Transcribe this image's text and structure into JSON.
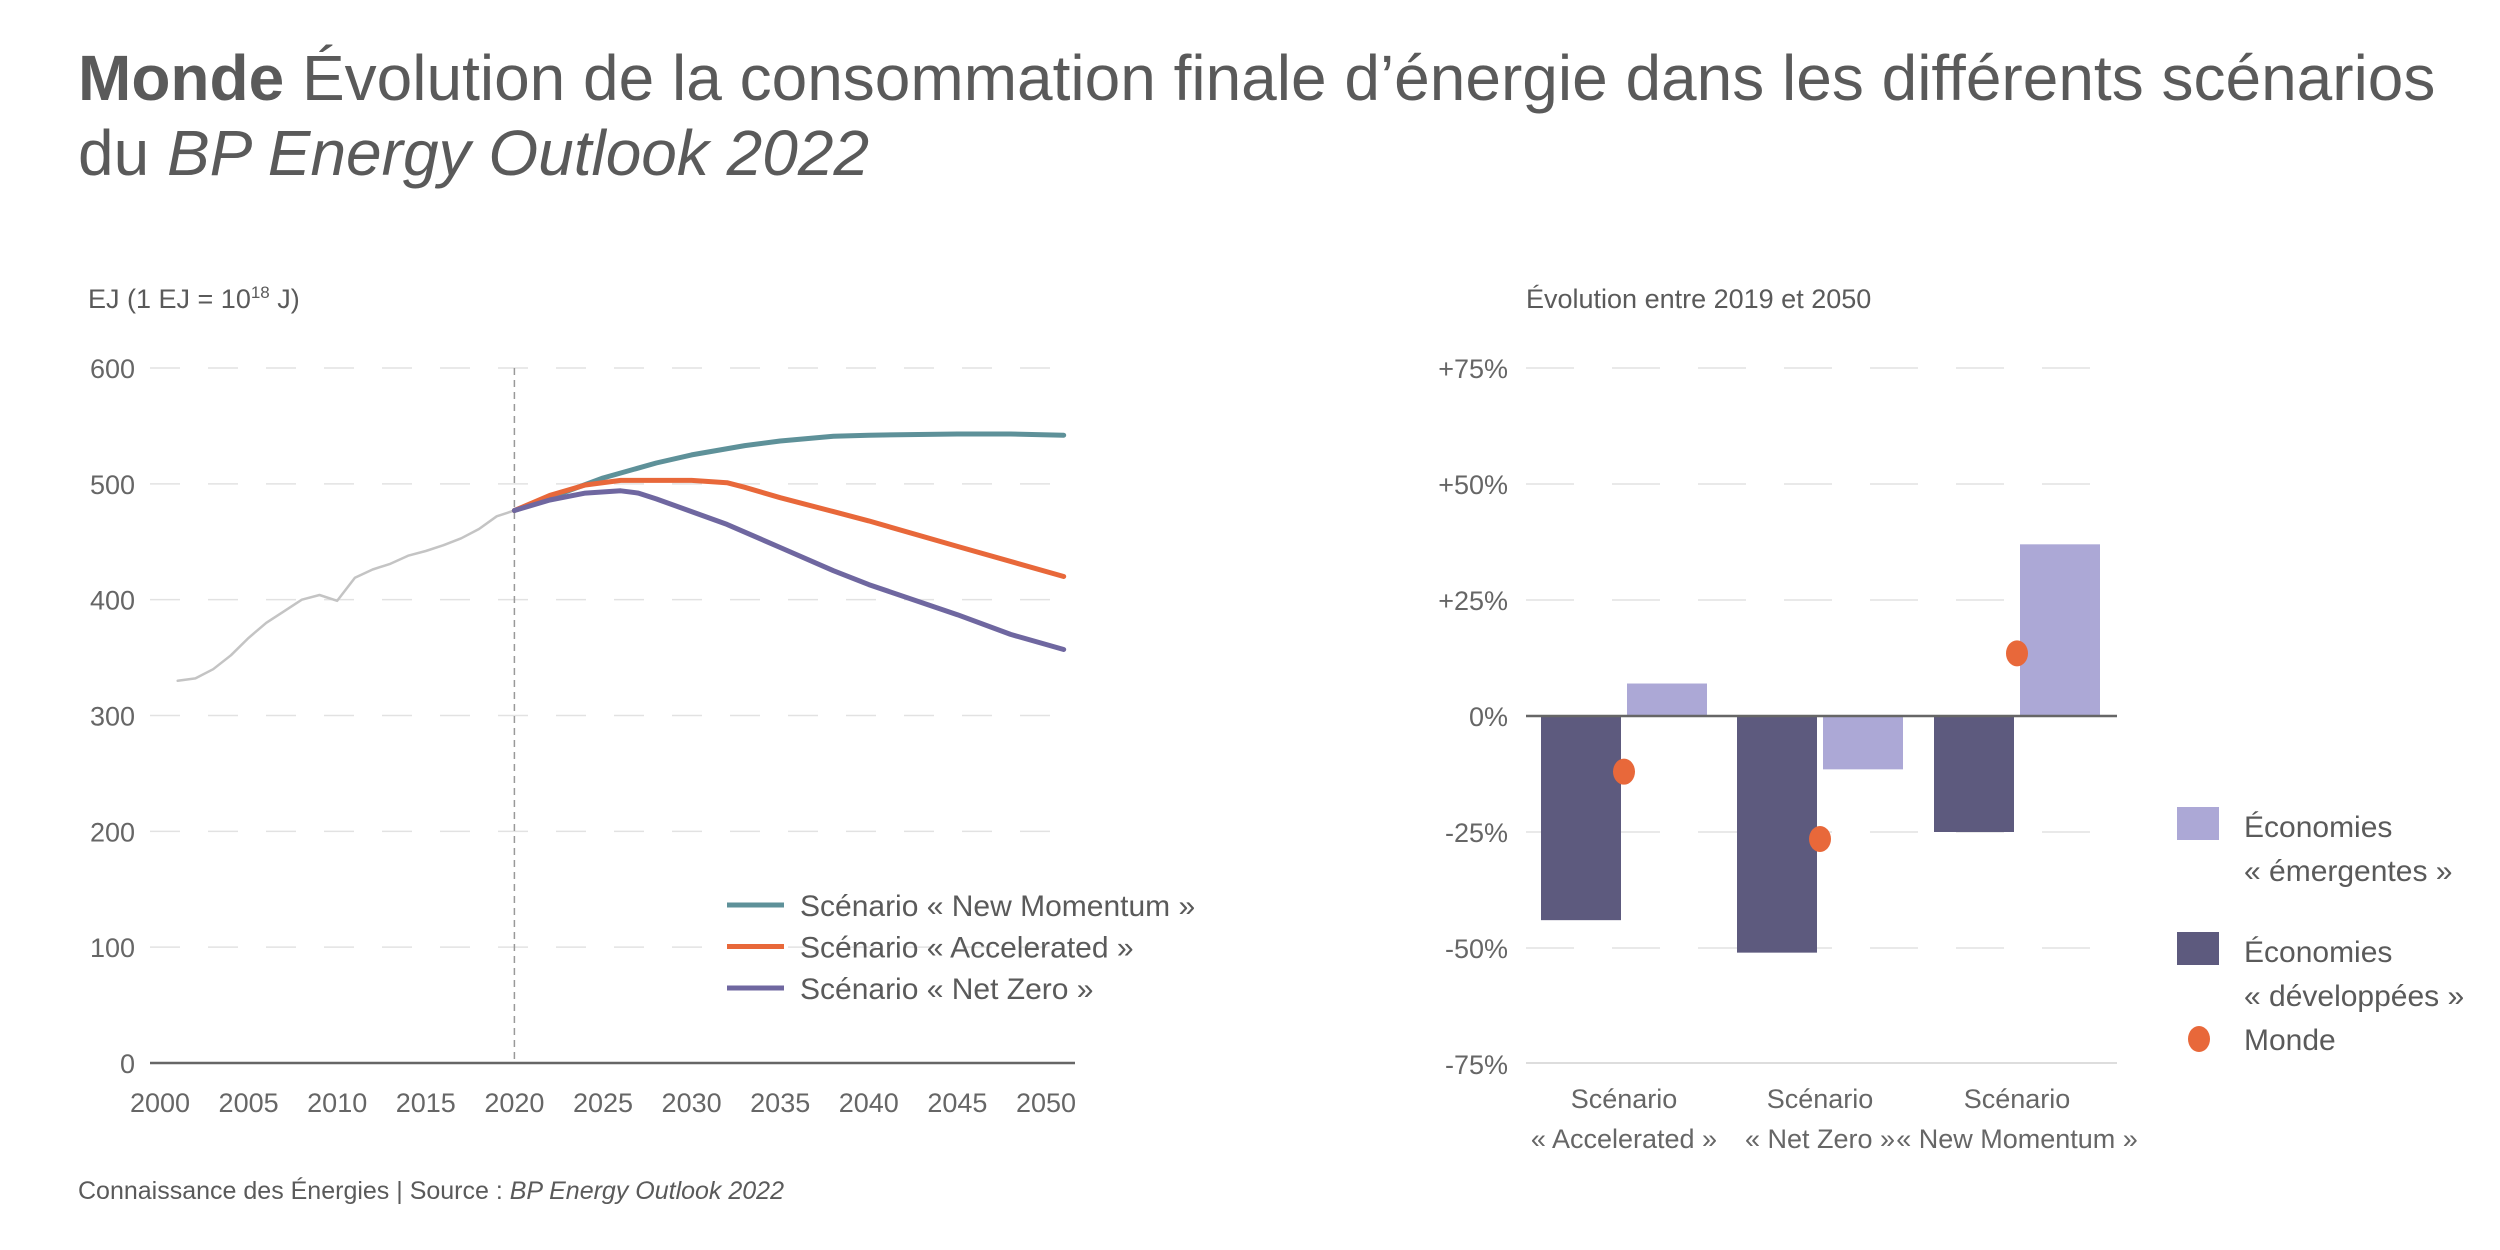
{
  "title": {
    "bold": "Monde",
    "line1": " Évolution de la consommation finale d’énergie dans les différents scénarios",
    "line2_prefix": "du ",
    "line2_italic": "BP Energy Outlook 2022"
  },
  "footer": {
    "prefix": "Connaissance des Énergies | Source : ",
    "italic": "BP Energy Outlook 2022"
  },
  "colors": {
    "historical": "#c4c4c4",
    "new_momentum": "#5e9199",
    "accelerated": "#e8683a",
    "net_zero": "#6f67a0",
    "developed": "#5d5a7e",
    "emerging": "#aca8d6",
    "monde": "#e8683a"
  },
  "chart_data": [
    {
      "type": "line",
      "ylabel": "EJ (1 EJ = 10",
      "ylabel_sup": "18",
      "ylabel_end": " J)",
      "xlim": [
        2000,
        2052
      ],
      "ylim": [
        0,
        600
      ],
      "yticks": [
        "0",
        "100",
        "200",
        "300",
        "400",
        "500",
        "600"
      ],
      "xticks": [
        "2000",
        "2005",
        "2010",
        "2015",
        "2020",
        "2025",
        "2030",
        "2035",
        "2040",
        "2045",
        "2050"
      ],
      "grid": true,
      "vline": 2020,
      "legend_position": "bottom-right",
      "series": [
        {
          "key": "historical",
          "x": [
            2001,
            2002,
            2003,
            2004,
            2005,
            2006,
            2007,
            2008,
            2009,
            2010,
            2011,
            2012,
            2013,
            2014,
            2015,
            2016,
            2017,
            2018,
            2019,
            2020
          ],
          "y": [
            330,
            332,
            340,
            352,
            367,
            380,
            390,
            400,
            404,
            399,
            419,
            426,
            431,
            438,
            442,
            447,
            453,
            461,
            472,
            477
          ]
        },
        {
          "key": "new_momentum",
          "name": "Scénario « New Momentum »",
          "x": [
            2020,
            2022,
            2025,
            2028,
            2030,
            2033,
            2035,
            2038,
            2040,
            2045,
            2048,
            2051
          ],
          "y": [
            477,
            488,
            505,
            518,
            525,
            533,
            537,
            541,
            542,
            543,
            543,
            542
          ]
        },
        {
          "key": "accelerated",
          "name": "Scénario « Accelerated »",
          "x": [
            2020,
            2022,
            2024,
            2026,
            2028,
            2030,
            2032,
            2033,
            2035,
            2038,
            2040,
            2045,
            2051
          ],
          "y": [
            477,
            490,
            499,
            503,
            503,
            503,
            501,
            497,
            488,
            476,
            468,
            446,
            420
          ]
        },
        {
          "key": "net_zero",
          "name": "Scénario « Net Zero »",
          "x": [
            2020,
            2022,
            2024,
            2026,
            2027,
            2028,
            2030,
            2032,
            2035,
            2038,
            2040,
            2045,
            2048,
            2051
          ],
          "y": [
            477,
            486,
            492,
            494,
            492,
            487,
            476,
            465,
            445,
            425,
            413,
            387,
            370,
            357
          ]
        }
      ]
    },
    {
      "type": "bar",
      "title": "Évolution entre 2019 et 2050",
      "ylim": [
        -75,
        75
      ],
      "yticks": [
        "-75%",
        "-50%",
        "-25%",
        "0%",
        "+25%",
        "+50%",
        "+75%"
      ],
      "grid": true,
      "legend_position": "right",
      "categories": [
        [
          "Scénario",
          "« Accelerated »"
        ],
        [
          "Scénario",
          "« Net Zero »"
        ],
        [
          "Scénario",
          "« New Momentum »"
        ]
      ],
      "series": [
        {
          "key": "developed",
          "name": "Économies « développées »",
          "name_lines": [
            "Économies",
            "« développées »"
          ],
          "values": [
            -44,
            -51,
            -25
          ]
        },
        {
          "key": "emerging",
          "name": "Économies « émergentes »",
          "name_lines": [
            "Économies",
            "« émergentes »"
          ],
          "values": [
            7,
            -11.5,
            37
          ]
        },
        {
          "key": "monde",
          "name": "Monde",
          "name_lines": [
            "Monde"
          ],
          "values": [
            -12,
            -26.5,
            13.5
          ],
          "marker": "dot"
        }
      ]
    }
  ]
}
